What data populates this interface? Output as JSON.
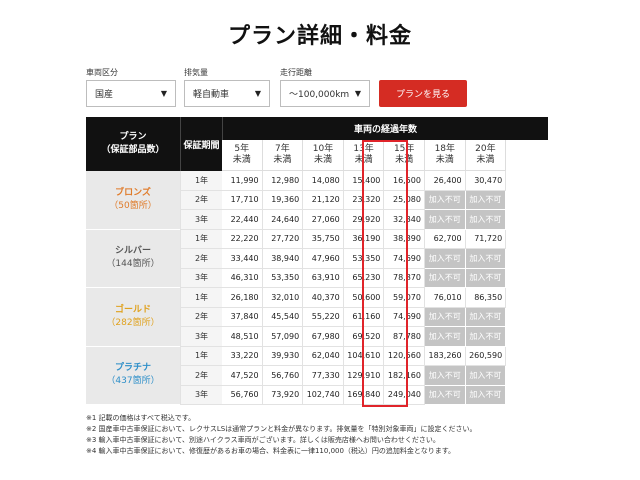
{
  "page": {
    "title": "プラン詳細・料金"
  },
  "filters": [
    {
      "label": "車両区分",
      "value": "国産"
    },
    {
      "label": "排気量",
      "value": "軽自動車"
    },
    {
      "label": "走行距離",
      "value": "〜100,000km"
    }
  ],
  "search_button": "プランを見る",
  "table": {
    "plan_header": [
      "プラン",
      "（保証部品数）"
    ],
    "warranty_header": "保証期間",
    "years_header": "車両の経過年数",
    "year_columns": [
      [
        "5年",
        "未満"
      ],
      [
        "7年",
        "未満"
      ],
      [
        "10年",
        "未満"
      ],
      [
        "13年",
        "未満"
      ],
      [
        "15年",
        "未満"
      ],
      [
        "18年",
        "未満"
      ],
      [
        "20年",
        "未満"
      ]
    ],
    "plans": [
      {
        "name": "ブロンズ",
        "count": "（50箇所）",
        "color": "#e07b2a",
        "rows": [
          {
            "period": "1年",
            "values": [
              "11,990",
              "12,980",
              "14,080",
              "15,400",
              "16,500",
              "26,400",
              "30,470"
            ]
          },
          {
            "period": "2年",
            "values": [
              "17,710",
              "19,360",
              "21,120",
              "23,320",
              "25,080",
              "加入不可",
              "加入不可"
            ]
          },
          {
            "period": "3年",
            "values": [
              "22,440",
              "24,640",
              "27,060",
              "29,920",
              "32,340",
              "加入不可",
              "加入不可"
            ]
          }
        ]
      },
      {
        "name": "シルバー",
        "count": "（144箇所）",
        "color": "#555555",
        "rows": [
          {
            "period": "1年",
            "values": [
              "22,220",
              "27,720",
              "35,750",
              "36,190",
              "38,390",
              "62,700",
              "71,720"
            ]
          },
          {
            "period": "2年",
            "values": [
              "33,440",
              "38,940",
              "47,960",
              "53,350",
              "74,690",
              "加入不可",
              "加入不可"
            ]
          },
          {
            "period": "3年",
            "values": [
              "46,310",
              "53,350",
              "63,910",
              "65,230",
              "78,870",
              "加入不可",
              "加入不可"
            ]
          }
        ]
      },
      {
        "name": "ゴールド",
        "count": "（282箇所）",
        "color": "#e0a21f",
        "rows": [
          {
            "period": "1年",
            "values": [
              "26,180",
              "32,010",
              "40,370",
              "50,600",
              "59,070",
              "76,010",
              "86,350"
            ]
          },
          {
            "period": "2年",
            "values": [
              "37,840",
              "45,540",
              "55,220",
              "61,160",
              "74,690",
              "加入不可",
              "加入不可"
            ]
          },
          {
            "period": "3年",
            "values": [
              "48,510",
              "57,090",
              "67,980",
              "69,520",
              "87,780",
              "加入不可",
              "加入不可"
            ]
          }
        ]
      },
      {
        "name": "プラチナ",
        "count": "（437箇所）",
        "color": "#2e8fc9",
        "rows": [
          {
            "period": "1年",
            "values": [
              "33,220",
              "39,930",
              "62,040",
              "104,610",
              "120,560",
              "183,260",
              "260,590"
            ]
          },
          {
            "period": "2年",
            "values": [
              "47,520",
              "56,760",
              "77,330",
              "129,910",
              "182,160",
              "加入不可",
              "加入不可"
            ]
          },
          {
            "period": "3年",
            "values": [
              "56,760",
              "73,920",
              "102,740",
              "169,840",
              "249,040",
              "加入不可",
              "加入不可"
            ]
          }
        ]
      }
    ]
  },
  "notes": [
    "※1 記載の価格はすべて税込です。",
    "※2 国産車中古車保証において、レクサスLSは通常プランと料金が異なります。排気量を「特別対象車両」に設定ください。",
    "※3 輸入車中古車保証において、別途ハイクラス車両がございます。詳しくは販売店様へお問い合わせください。",
    "※4 輸入車中古車保証において、修復歴があるお車の場合、料金表に一律110,000（税込）円の追加料金となります。"
  ]
}
